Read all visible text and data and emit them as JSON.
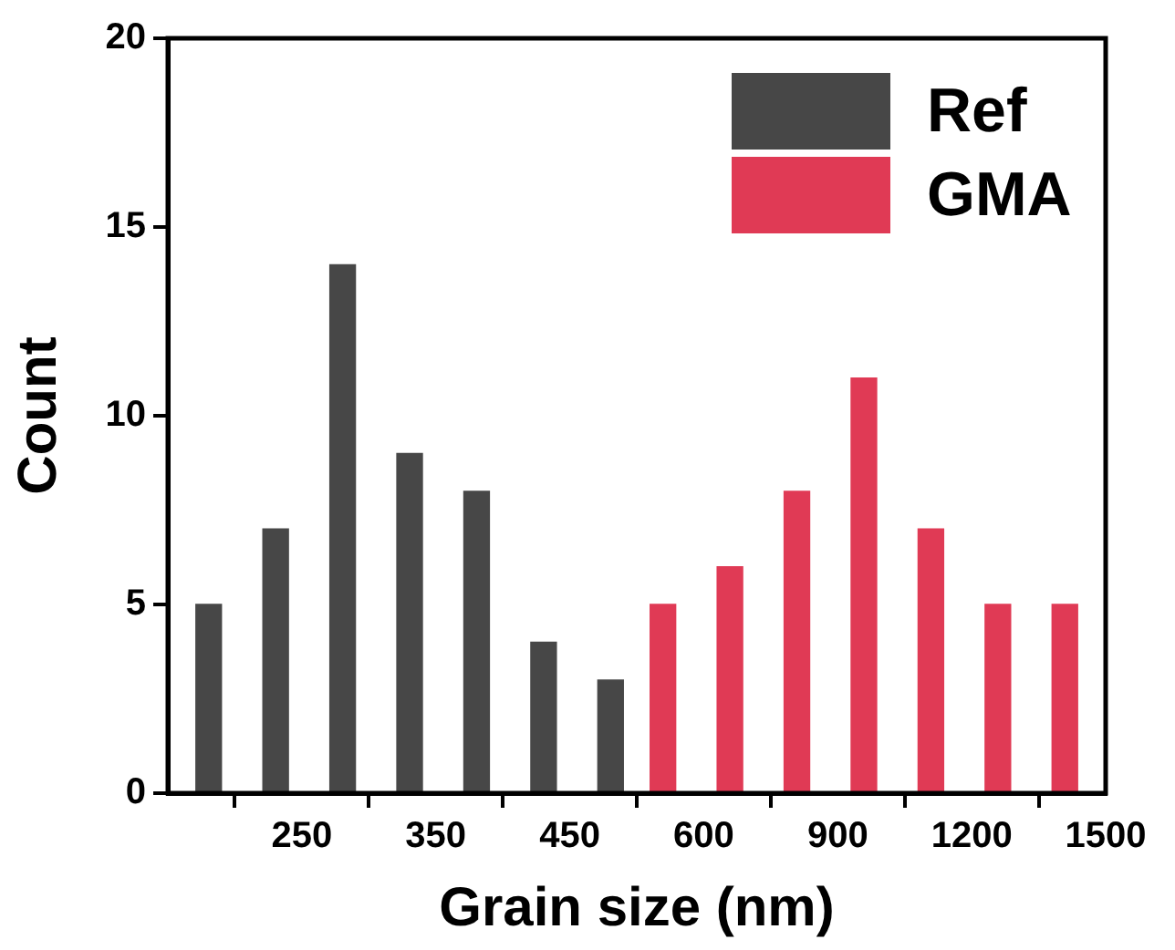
{
  "chart_data": {
    "type": "bar",
    "xlabel": "Grain size (nm)",
    "ylabel": "Count",
    "series": [
      {
        "name": "Ref",
        "color": "#474747",
        "x": [
          190,
          240,
          290,
          340,
          390,
          440,
          490
        ],
        "values": [
          5,
          7,
          14,
          9,
          8,
          4,
          3
        ]
      },
      {
        "name": "GMA",
        "color": "#e03a55",
        "axis": "x2",
        "x": [
          480,
          630,
          780,
          930,
          1080,
          1230,
          1380
        ],
        "values": [
          5,
          6,
          8,
          11,
          7,
          5,
          5
        ]
      }
    ],
    "xlim": [
      150,
      850
    ],
    "xticks": [
      {
        "value": 150,
        "label": null
      },
      250,
      350,
      450
    ],
    "x2lim": [
      -600,
      1500
    ],
    "x2ticks": [
      600,
      900,
      1200,
      1500
    ],
    "ylim": [
      0,
      20
    ],
    "yticks": [
      0,
      5,
      10,
      15,
      20
    ],
    "grid": false,
    "legend": "top right"
  }
}
